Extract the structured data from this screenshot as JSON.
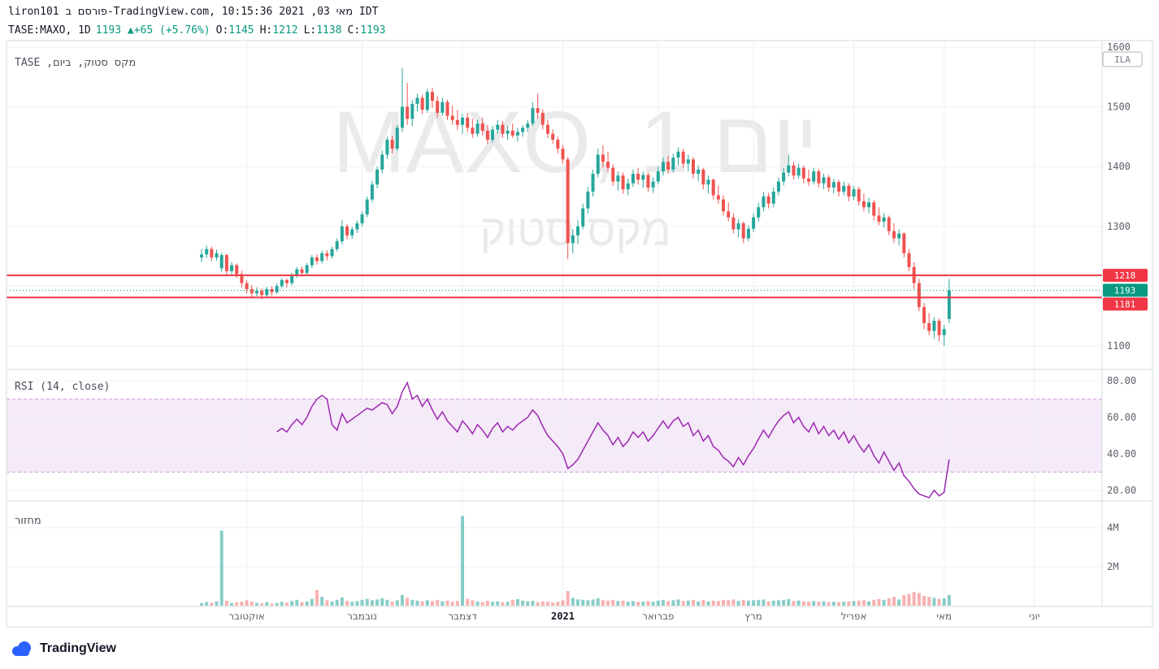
{
  "header": {
    "byline": "liron101 פורסם ב-TradingView.com, מאי 03, 2021 10:15:36 IDT",
    "symbol": "TASE:MAXO, 1D",
    "change": "1193 ▲+65 (+5.76%)",
    "open_label": "O:",
    "open": "1145",
    "high_label": "H:",
    "high": "1212",
    "low_label": "L:",
    "low": "1138",
    "close_label": "C:",
    "close": "1193"
  },
  "legend": {
    "main": "מקס סטוק, ביום, TASE",
    "rsi": "RSI (14, close)",
    "volume": "מחזור"
  },
  "watermark": {
    "line1": "MAXO, 1 יום",
    "line2": "מקס סטוק"
  },
  "footer": {
    "logo_text": "TradingView"
  },
  "chart_data": {
    "type": "candlestick",
    "symbol": "TASE:MAXO",
    "interval": "1D",
    "panes": [
      "price",
      "rsi",
      "volume"
    ],
    "price_axis": {
      "currency": "ILA",
      "ticks": [
        {
          "v": 1600,
          "label": "1600"
        },
        {
          "v": 1500,
          "label": "1500"
        },
        {
          "v": 1400,
          "label": "1400"
        },
        {
          "v": 1300,
          "label": "1300"
        },
        {
          "v": 1200,
          "label": ""
        },
        {
          "v": 1100,
          "label": "1100"
        }
      ]
    },
    "rsi_axis": {
      "ticks": [
        {
          "v": 80,
          "label": "80.00"
        },
        {
          "v": 60,
          "label": "60.00"
        },
        {
          "v": 40,
          "label": "40.00"
        },
        {
          "v": 20,
          "label": "20.00"
        }
      ],
      "band": [
        30,
        70
      ]
    },
    "volume_axis": {
      "unit": "millions",
      "ticks": [
        {
          "v": 4,
          "label": "4M"
        },
        {
          "v": 2,
          "label": "2M"
        }
      ]
    },
    "price_lines": [
      1218,
      1181
    ],
    "last_price": 1193,
    "months": [
      {
        "label": "אוקטובר",
        "idx": 9
      },
      {
        "label": "נובמבר",
        "idx": 32
      },
      {
        "label": "דצמבר",
        "idx": 52
      },
      {
        "label": "2021",
        "idx": 72,
        "bold": true
      },
      {
        "label": "פברואר",
        "idx": 91
      },
      {
        "label": "מרץ",
        "idx": 110
      },
      {
        "label": "אפריל",
        "idx": 130
      },
      {
        "label": "מאי",
        "idx": 148
      },
      {
        "label": "יוני",
        "idx": 166
      }
    ],
    "candles": [
      [
        1248,
        1262,
        1240,
        1253
      ],
      [
        1253,
        1268,
        1247,
        1262
      ],
      [
        1262,
        1266,
        1242,
        1248
      ],
      [
        1248,
        1261,
        1243,
        1255
      ],
      [
        1230,
        1256,
        1224,
        1252
      ],
      [
        1252,
        1254,
        1218,
        1225
      ],
      [
        1225,
        1240,
        1220,
        1235
      ],
      [
        1235,
        1238,
        1214,
        1220
      ],
      [
        1220,
        1226,
        1198,
        1205
      ],
      [
        1205,
        1210,
        1188,
        1195
      ],
      [
        1195,
        1202,
        1182,
        1188
      ],
      [
        1188,
        1198,
        1183,
        1192
      ],
      [
        1192,
        1196,
        1178,
        1185
      ],
      [
        1185,
        1199,
        1181,
        1195
      ],
      [
        1195,
        1200,
        1184,
        1190
      ],
      [
        1190,
        1205,
        1187,
        1200
      ],
      [
        1200,
        1214,
        1196,
        1210
      ],
      [
        1210,
        1213,
        1198,
        1205
      ],
      [
        1205,
        1222,
        1201,
        1218
      ],
      [
        1218,
        1232,
        1214,
        1228
      ],
      [
        1228,
        1233,
        1216,
        1222
      ],
      [
        1222,
        1239,
        1218,
        1235
      ],
      [
        1235,
        1252,
        1230,
        1248
      ],
      [
        1248,
        1253,
        1236,
        1242
      ],
      [
        1242,
        1259,
        1238,
        1255
      ],
      [
        1255,
        1260,
        1243,
        1250
      ],
      [
        1250,
        1266,
        1246,
        1262
      ],
      [
        1262,
        1280,
        1258,
        1275
      ],
      [
        1275,
        1310,
        1270,
        1300
      ],
      [
        1300,
        1304,
        1278,
        1285
      ],
      [
        1285,
        1299,
        1279,
        1295
      ],
      [
        1295,
        1310,
        1289,
        1305
      ],
      [
        1305,
        1325,
        1300,
        1320
      ],
      [
        1320,
        1350,
        1315,
        1345
      ],
      [
        1345,
        1376,
        1340,
        1370
      ],
      [
        1370,
        1400,
        1364,
        1395
      ],
      [
        1395,
        1427,
        1389,
        1420
      ],
      [
        1420,
        1450,
        1413,
        1445
      ],
      [
        1445,
        1452,
        1422,
        1430
      ],
      [
        1430,
        1470,
        1426,
        1465
      ],
      [
        1465,
        1565,
        1458,
        1500
      ],
      [
        1500,
        1540,
        1470,
        1480
      ],
      [
        1480,
        1512,
        1468,
        1505
      ],
      [
        1505,
        1522,
        1492,
        1515
      ],
      [
        1515,
        1520,
        1488,
        1495
      ],
      [
        1495,
        1530,
        1490,
        1525
      ],
      [
        1525,
        1532,
        1498,
        1510
      ],
      [
        1510,
        1518,
        1482,
        1490
      ],
      [
        1490,
        1515,
        1485,
        1508
      ],
      [
        1508,
        1512,
        1478,
        1485
      ],
      [
        1485,
        1502,
        1470,
        1478
      ],
      [
        1478,
        1495,
        1462,
        1470
      ],
      [
        1470,
        1488,
        1455,
        1482
      ],
      [
        1482,
        1490,
        1458,
        1465
      ],
      [
        1465,
        1480,
        1448,
        1455
      ],
      [
        1455,
        1478,
        1450,
        1472
      ],
      [
        1472,
        1482,
        1452,
        1460
      ],
      [
        1460,
        1470,
        1438,
        1445
      ],
      [
        1445,
        1468,
        1440,
        1462
      ],
      [
        1462,
        1478,
        1455,
        1470
      ],
      [
        1470,
        1476,
        1448,
        1455
      ],
      [
        1455,
        1468,
        1445,
        1460
      ],
      [
        1460,
        1472,
        1448,
        1452
      ],
      [
        1452,
        1465,
        1442,
        1458
      ],
      [
        1458,
        1470,
        1450,
        1465
      ],
      [
        1465,
        1478,
        1458,
        1472
      ],
      [
        1472,
        1508,
        1468,
        1498
      ],
      [
        1498,
        1522,
        1480,
        1490
      ],
      [
        1490,
        1496,
        1462,
        1470
      ],
      [
        1470,
        1478,
        1448,
        1455
      ],
      [
        1455,
        1462,
        1438,
        1445
      ],
      [
        1445,
        1450,
        1422,
        1430
      ],
      [
        1430,
        1436,
        1405,
        1412
      ],
      [
        1412,
        1416,
        1245,
        1272
      ],
      [
        1272,
        1295,
        1255,
        1285
      ],
      [
        1285,
        1310,
        1270,
        1300
      ],
      [
        1300,
        1338,
        1295,
        1330
      ],
      [
        1330,
        1366,
        1322,
        1358
      ],
      [
        1358,
        1395,
        1350,
        1388
      ],
      [
        1388,
        1430,
        1382,
        1420
      ],
      [
        1420,
        1436,
        1398,
        1408
      ],
      [
        1408,
        1425,
        1390,
        1398
      ],
      [
        1398,
        1404,
        1368,
        1375
      ],
      [
        1375,
        1392,
        1360,
        1385
      ],
      [
        1385,
        1390,
        1355,
        1362
      ],
      [
        1362,
        1380,
        1352,
        1372
      ],
      [
        1372,
        1395,
        1366,
        1388
      ],
      [
        1388,
        1398,
        1370,
        1378
      ],
      [
        1378,
        1392,
        1365,
        1386
      ],
      [
        1386,
        1390,
        1358,
        1365
      ],
      [
        1365,
        1382,
        1356,
        1375
      ],
      [
        1375,
        1400,
        1370,
        1392
      ],
      [
        1392,
        1415,
        1385,
        1408
      ],
      [
        1408,
        1418,
        1388,
        1395
      ],
      [
        1395,
        1422,
        1390,
        1415
      ],
      [
        1415,
        1432,
        1402,
        1425
      ],
      [
        1425,
        1430,
        1398,
        1405
      ],
      [
        1405,
        1420,
        1392,
        1412
      ],
      [
        1412,
        1416,
        1380,
        1388
      ],
      [
        1388,
        1402,
        1375,
        1395
      ],
      [
        1395,
        1398,
        1362,
        1370
      ],
      [
        1370,
        1385,
        1355,
        1378
      ],
      [
        1378,
        1380,
        1345,
        1352
      ],
      [
        1352,
        1368,
        1338,
        1345
      ],
      [
        1345,
        1352,
        1318,
        1325
      ],
      [
        1325,
        1340,
        1308,
        1315
      ],
      [
        1315,
        1322,
        1288,
        1295
      ],
      [
        1295,
        1312,
        1282,
        1305
      ],
      [
        1305,
        1308,
        1272,
        1280
      ],
      [
        1280,
        1302,
        1275,
        1296
      ],
      [
        1296,
        1322,
        1290,
        1315
      ],
      [
        1315,
        1340,
        1308,
        1332
      ],
      [
        1332,
        1358,
        1325,
        1350
      ],
      [
        1350,
        1356,
        1330,
        1338
      ],
      [
        1338,
        1365,
        1332,
        1358
      ],
      [
        1358,
        1382,
        1352,
        1375
      ],
      [
        1375,
        1398,
        1368,
        1390
      ],
      [
        1390,
        1420,
        1384,
        1402
      ],
      [
        1402,
        1408,
        1378,
        1385
      ],
      [
        1385,
        1405,
        1380,
        1398
      ],
      [
        1398,
        1402,
        1372,
        1380
      ],
      [
        1380,
        1395,
        1368,
        1375
      ],
      [
        1375,
        1398,
        1370,
        1392
      ],
      [
        1392,
        1396,
        1365,
        1372
      ],
      [
        1372,
        1388,
        1362,
        1382
      ],
      [
        1382,
        1386,
        1358,
        1365
      ],
      [
        1365,
        1380,
        1355,
        1374
      ],
      [
        1374,
        1378,
        1350,
        1358
      ],
      [
        1358,
        1375,
        1352,
        1368
      ],
      [
        1368,
        1372,
        1342,
        1350
      ],
      [
        1350,
        1368,
        1344,
        1362
      ],
      [
        1362,
        1366,
        1335,
        1342
      ],
      [
        1342,
        1355,
        1325,
        1332
      ],
      [
        1332,
        1348,
        1322,
        1340
      ],
      [
        1340,
        1344,
        1310,
        1318
      ],
      [
        1318,
        1332,
        1302,
        1308
      ],
      [
        1308,
        1322,
        1298,
        1315
      ],
      [
        1315,
        1318,
        1285,
        1292
      ],
      [
        1292,
        1305,
        1272,
        1280
      ],
      [
        1280,
        1295,
        1268,
        1288
      ],
      [
        1288,
        1290,
        1248,
        1255
      ],
      [
        1255,
        1262,
        1225,
        1232
      ],
      [
        1232,
        1240,
        1195,
        1205
      ],
      [
        1205,
        1212,
        1158,
        1165
      ],
      [
        1165,
        1172,
        1128,
        1138
      ],
      [
        1138,
        1155,
        1118,
        1125
      ],
      [
        1125,
        1148,
        1112,
        1142
      ],
      [
        1142,
        1146,
        1108,
        1118
      ],
      [
        1118,
        1135,
        1100,
        1128
      ],
      [
        1145,
        1212,
        1138,
        1193
      ]
    ],
    "volume": [
      0.12,
      0.18,
      0.15,
      0.22,
      3.85,
      0.25,
      0.14,
      0.18,
      0.2,
      0.28,
      0.22,
      0.15,
      0.12,
      0.18,
      0.1,
      0.14,
      0.2,
      0.16,
      0.24,
      0.3,
      0.18,
      0.22,
      0.35,
      0.8,
      0.45,
      0.28,
      0.22,
      0.3,
      0.42,
      0.25,
      0.2,
      0.24,
      0.3,
      0.35,
      0.28,
      0.32,
      0.38,
      0.3,
      0.22,
      0.28,
      0.55,
      0.4,
      0.3,
      0.26,
      0.22,
      0.28,
      0.24,
      0.3,
      0.22,
      0.26,
      0.2,
      0.24,
      4.6,
      0.35,
      0.28,
      0.22,
      0.18,
      0.25,
      0.2,
      0.22,
      0.18,
      0.2,
      0.3,
      0.34,
      0.26,
      0.22,
      0.25,
      0.18,
      0.22,
      0.2,
      0.16,
      0.2,
      0.28,
      0.75,
      0.4,
      0.32,
      0.3,
      0.28,
      0.32,
      0.38,
      0.3,
      0.26,
      0.3,
      0.24,
      0.26,
      0.2,
      0.24,
      0.2,
      0.22,
      0.24,
      0.2,
      0.26,
      0.3,
      0.24,
      0.28,
      0.32,
      0.24,
      0.26,
      0.3,
      0.22,
      0.28,
      0.22,
      0.26,
      0.24,
      0.3,
      0.28,
      0.32,
      0.24,
      0.3,
      0.26,
      0.28,
      0.3,
      0.32,
      0.22,
      0.26,
      0.28,
      0.3,
      0.34,
      0.24,
      0.26,
      0.22,
      0.2,
      0.24,
      0.2,
      0.22,
      0.18,
      0.2,
      0.18,
      0.2,
      0.22,
      0.24,
      0.26,
      0.28,
      0.22,
      0.3,
      0.34,
      0.3,
      0.38,
      0.45,
      0.32,
      0.55,
      0.6,
      0.7,
      0.65,
      0.5,
      0.45,
      0.4,
      0.35,
      0.38,
      0.55
    ],
    "rsi": [
      null,
      null,
      null,
      null,
      null,
      null,
      null,
      null,
      null,
      null,
      null,
      null,
      null,
      null,
      null,
      52,
      54,
      52,
      56,
      59,
      56,
      60,
      66,
      70,
      72,
      70,
      56,
      53,
      62,
      57,
      59,
      61,
      63,
      65,
      64,
      66,
      68,
      67,
      62,
      66,
      74,
      79,
      70,
      72,
      66,
      70,
      64,
      59,
      63,
      58,
      55,
      52,
      58,
      55,
      51,
      56,
      53,
      49,
      54,
      57,
      52,
      55,
      53,
      56,
      58,
      60,
      64,
      61,
      55,
      50,
      47,
      44,
      40,
      32,
      34,
      37,
      42,
      47,
      52,
      57,
      53,
      50,
      45,
      49,
      44,
      47,
      52,
      49,
      52,
      47,
      50,
      54,
      58,
      54,
      58,
      60,
      55,
      57,
      50,
      53,
      47,
      50,
      44,
      42,
      38,
      36,
      33,
      38,
      34,
      39,
      43,
      48,
      53,
      49,
      54,
      58,
      61,
      63,
      57,
      60,
      55,
      52,
      57,
      51,
      55,
      50,
      53,
      48,
      52,
      46,
      50,
      45,
      41,
      45,
      39,
      35,
      41,
      36,
      31,
      35,
      28,
      25,
      21,
      18,
      17,
      16,
      20,
      17,
      19,
      37
    ],
    "colors": {
      "up": "#26a69a",
      "down": "#ef5350",
      "up_dark": "#089981",
      "alert_line": "#f23645",
      "vol_up": "rgba(38,166,154,0.55)",
      "vol_down": "rgba(239,83,80,0.45)",
      "rsi": "#9c27b0",
      "rsi_band": "#f5eaf8",
      "rsi_band_border": "#cfa0d8",
      "grid": "#edf0f7",
      "border": "#d7dade",
      "axis_text": "#5d606b"
    }
  }
}
